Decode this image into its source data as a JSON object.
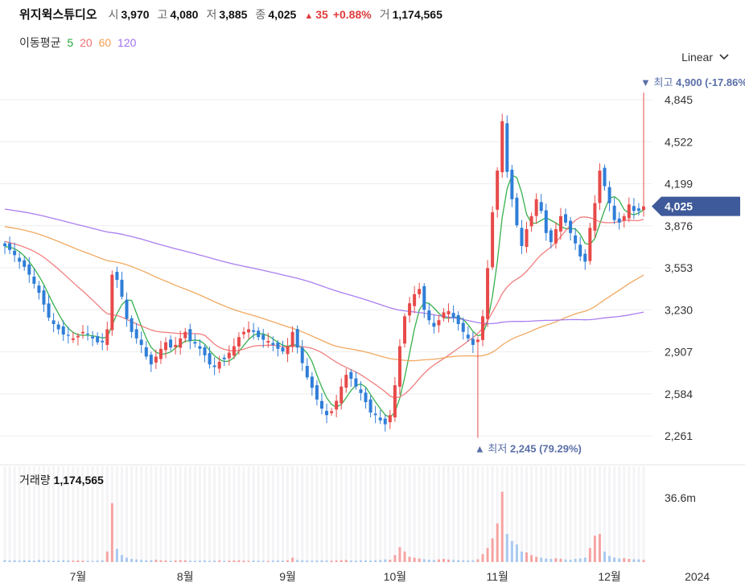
{
  "header": {
    "name": "위지윅스튜디오",
    "open_label": "시",
    "open": "3,970",
    "high_label": "고",
    "high": "4,080",
    "low_label": "저",
    "low": "3,885",
    "close_label": "종",
    "close": "4,025",
    "change_arrow": "▲",
    "change": "35",
    "change_pct": "+0.88%",
    "volume_label": "거",
    "volume": "1,174,565"
  },
  "ma_legend": {
    "label": "이동평균",
    "items": [
      {
        "label": "5",
        "color": "#22a83a"
      },
      {
        "label": "20",
        "color": "#f07070"
      },
      {
        "label": "60",
        "color": "#f0a050"
      },
      {
        "label": "120",
        "color": "#a070f0"
      }
    ]
  },
  "scale_select": {
    "label": "Linear"
  },
  "volume_panel": {
    "label": "거래량",
    "value": "1,174,565",
    "axis_tick": "36.6m"
  },
  "colors": {
    "up": "#e84a4a",
    "down": "#2f7ed8",
    "up_vol": "#f5a3a3",
    "down_vol": "#a9c9f0",
    "price_tag": "#3f5a9a"
  },
  "chart_data": {
    "type": "candlestick",
    "y_ticks": [
      "4,845",
      "4,522",
      "4,199",
      "3,876",
      "3,553",
      "3,230",
      "2,907",
      "2,584",
      "2,261"
    ],
    "y_tick_values": [
      4845,
      4522,
      4199,
      3876,
      3553,
      3230,
      2907,
      2584,
      2261
    ],
    "ylim": [
      2100,
      5000
    ],
    "x_labels": [
      "7월",
      "8월",
      "9월",
      "10월",
      "11월",
      "12월",
      "2024"
    ],
    "x_label_index": [
      15,
      37,
      58,
      80,
      101,
      124,
      142
    ],
    "current_price": "4,025",
    "current_value": 4025,
    "high_annotation": {
      "text_prefix": "최고",
      "value": "4,900",
      "pct": "(-17.86%)",
      "index": 131,
      "price": 4900
    },
    "low_annotation": {
      "text_prefix": "최저",
      "value": "2,245",
      "pct": "(79.29%)",
      "index": 97,
      "price": 2245
    },
    "closes": [
      3720,
      3690,
      3650,
      3600,
      3560,
      3500,
      3430,
      3360,
      3270,
      3170,
      3120,
      3080,
      3040,
      3030,
      3010,
      3030,
      3060,
      3040,
      3010,
      2980,
      2980,
      3080,
      3500,
      3460,
      3330,
      3160,
      3060,
      3010,
      2960,
      2870,
      2810,
      2870,
      2930,
      2980,
      2940,
      2960,
      3010,
      3060,
      2990,
      2970,
      2930,
      2880,
      2810,
      2790,
      2830,
      2850,
      2900,
      2950,
      3020,
      3060,
      3080,
      3060,
      3020,
      3000,
      2990,
      2960,
      2930,
      2910,
      2950,
      3060,
      2940,
      2820,
      2710,
      2630,
      2540,
      2470,
      2420,
      2450,
      2530,
      2640,
      2730,
      2700,
      2640,
      2590,
      2520,
      2440,
      2420,
      2380,
      2350,
      2420,
      2650,
      2950,
      3180,
      3280,
      3350,
      3390,
      3230,
      3150,
      3100,
      3150,
      3210,
      3220,
      3170,
      3120,
      3060,
      3010,
      2960,
      3000,
      3180,
      3550,
      3980,
      4300,
      4680,
      4290,
      4080,
      3880,
      3720,
      3850,
      3950,
      4080,
      3990,
      3820,
      3750,
      3850,
      3950,
      3900,
      3820,
      3740,
      3640,
      3600,
      3860,
      4050,
      4300,
      4180,
      4050,
      3920,
      3900,
      3950,
      4040,
      3990,
      3990,
      4025
    ],
    "volumes_m": [
      1.1,
      0.9,
      1.0,
      0.8,
      1.0,
      0.9,
      0.8,
      1.2,
      0.9,
      0.8,
      0.7,
      0.8,
      1.0,
      0.9,
      0.8,
      0.9,
      0.8,
      0.7,
      0.6,
      0.8,
      1.0,
      6.0,
      33.5,
      7.5,
      4.0,
      2.5,
      1.8,
      1.5,
      1.2,
      1.0,
      1.1,
      1.3,
      1.0,
      0.9,
      0.8,
      0.9,
      1.1,
      1.0,
      0.8,
      0.7,
      0.8,
      0.9,
      0.7,
      0.8,
      0.9,
      0.7,
      0.8,
      0.9,
      1.0,
      0.8,
      0.7,
      0.9,
      0.8,
      0.7,
      0.6,
      0.8,
      0.9,
      0.8,
      1.0,
      2.5,
      1.2,
      1.0,
      0.9,
      0.8,
      0.9,
      1.0,
      0.9,
      0.8,
      0.9,
      1.1,
      1.2,
      0.9,
      0.8,
      1.0,
      0.9,
      0.8,
      1.0,
      1.2,
      1.5,
      1.3,
      4.0,
      8.5,
      6.0,
      3.0,
      2.5,
      2.0,
      1.6,
      1.3,
      1.2,
      1.5,
      1.8,
      1.4,
      1.2,
      1.1,
      1.0,
      0.9,
      1.0,
      1.6,
      4.5,
      8.0,
      13.5,
      22.0,
      40.0,
      16.0,
      12.0,
      10.0,
      6.0,
      5.5,
      4.0,
      3.0,
      2.5,
      2.0,
      1.8,
      2.2,
      1.9,
      1.5,
      1.3,
      1.8,
      2.0,
      2.5,
      8.0,
      15.0,
      16.0,
      6.0,
      3.5,
      2.5,
      2.0,
      2.2,
      1.8,
      1.6,
      1.5,
      1.2
    ]
  }
}
